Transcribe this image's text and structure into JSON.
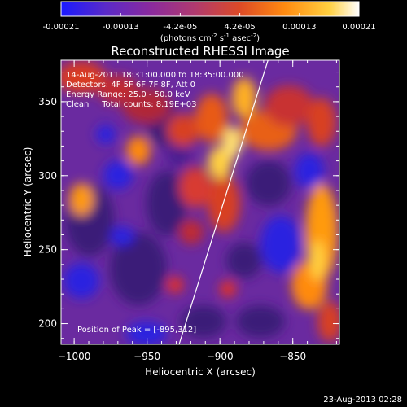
{
  "colorbar": {
    "ticks": [
      "-0.00021",
      "-0.00013",
      "-4.2e-05",
      "4.2e-05",
      "0.00013",
      "0.00021"
    ],
    "unit_main": "(photons cm",
    "unit_sup1": "-2",
    "unit_mid": " s",
    "unit_sup2": "-1",
    "unit_tail": " asec",
    "unit_sup3": "-2",
    "unit_close": ")",
    "colors": [
      "#1a1aff",
      "#5a2ac8",
      "#8a2a9e",
      "#b03a6e",
      "#dd4a26",
      "#ff8a10",
      "#ffd040",
      "#ffffff"
    ]
  },
  "chart_data": {
    "type": "heatmap",
    "title": "Reconstructed RHESSI Image",
    "xlabel": "Heliocentric X (arcsec)",
    "ylabel": "Heliocentric Y (arcsec)",
    "xlim": [
      -1009,
      -818
    ],
    "ylim": [
      186,
      378
    ],
    "x_ticks": [
      -1000,
      -950,
      -900,
      -850
    ],
    "y_ticks": [
      200,
      250,
      300,
      350
    ],
    "x_tick_labels": [
      "−1000",
      "−950",
      "−900",
      "−850"
    ],
    "y_tick_labels": [
      "200",
      "250",
      "300",
      "350"
    ],
    "limb_line": [
      [
        -928,
        186
      ],
      [
        -867,
        378
      ]
    ],
    "peak": [
      -895,
      312
    ],
    "annotations": [
      "14-Aug-2011 18:31:00.000 to 18:35:00.000",
      "Detectors: 4F 5F 6F 7F 8F, Att 0",
      "Energy Range: 25.0 - 50.0 keV",
      "Clean     Total counts: 8.19E+03"
    ],
    "peak_label": "Position of Peak = [-895,312]"
  },
  "footer": {
    "timestamp": "23-Aug-2013 02:28"
  }
}
